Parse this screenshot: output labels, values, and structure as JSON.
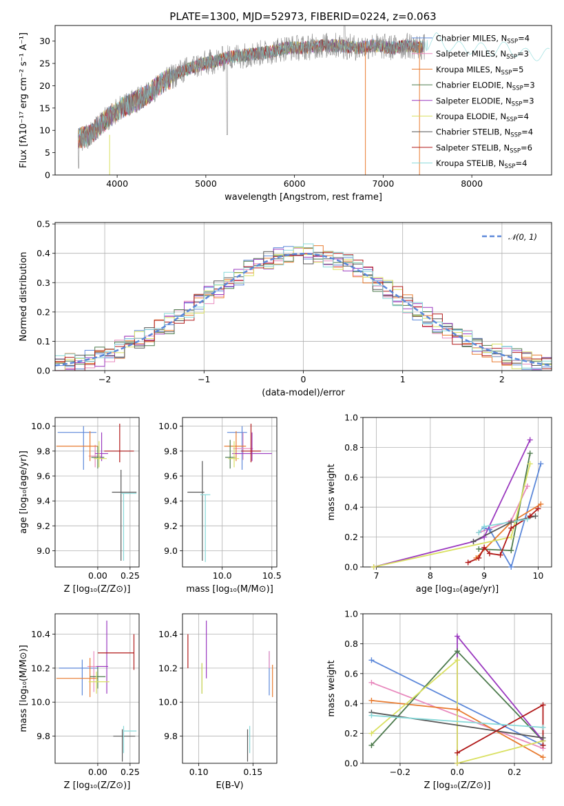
{
  "figure_title": "PLATE=1300, MJD=52973, FIBERID=0224, z=0.063",
  "series_colors": [
    "#5b87d9",
    "#e888bd",
    "#e87a2e",
    "#4c7a4c",
    "#9a38bf",
    "#d9e060",
    "#555555",
    "#b01818",
    "#86d8d8"
  ],
  "chart_data": [
    {
      "id": "spectrum",
      "type": "line",
      "xlabel": "wavelength [Angstrom, rest frame]",
      "ylabel": "Flux [fλ10⁻¹⁷ erg cm⁻² s⁻¹ A⁻¹]",
      "xlim": [
        3300,
        8900
      ],
      "ylim": [
        0,
        33.5
      ],
      "xticks": [
        4000,
        5000,
        6000,
        7000,
        8000
      ],
      "yticks": [
        0,
        5,
        10,
        15,
        20,
        25,
        30
      ],
      "legend_position": "right",
      "legend": [
        {
          "name": "Chabrier MILES, N",
          "sub": "SSP",
          "tail": "=4"
        },
        {
          "name": "Salpeter MILES, N",
          "sub": "SSP",
          "tail": "=3"
        },
        {
          "name": "Kroupa MILES, N",
          "sub": "SSP",
          "tail": "=5"
        },
        {
          "name": "Chabrier ELODIE, N",
          "sub": "SSP",
          "tail": "=3"
        },
        {
          "name": "Salpeter ELODIE, N",
          "sub": "SSP",
          "tail": "=3"
        },
        {
          "name": "Kroupa ELODIE, N",
          "sub": "SSP",
          "tail": "=4"
        },
        {
          "name": "Chabrier STELIB, N",
          "sub": "SSP",
          "tail": "=4"
        },
        {
          "name": "Salpeter STELIB, N",
          "sub": "SSP",
          "tail": "=6"
        },
        {
          "name": "Kroupa STELIB, N",
          "sub": "SSP",
          "tail": "=4"
        }
      ],
      "continuum": {
        "x": [
          3560,
          3700,
          3850,
          4000,
          4150,
          4300,
          4500,
          4700,
          4900,
          5100,
          5300,
          5500,
          5700,
          5900,
          6100,
          6300,
          6500,
          6700,
          6900,
          7100,
          7300,
          7450,
          7600,
          7800,
          8000,
          8200,
          8400,
          8600,
          8800
        ],
        "y": [
          8,
          9,
          12,
          14.5,
          16,
          17.5,
          20.5,
          23,
          24.5,
          25.5,
          26.5,
          27,
          27.5,
          28.5,
          28.5,
          29,
          29,
          28.5,
          29,
          28.5,
          29,
          28.5,
          30.5,
          28.5,
          28.5,
          28,
          28.5,
          27,
          27
        ]
      },
      "data_range": [
        3560,
        7470
      ],
      "model_range": [
        3560,
        8880
      ]
    },
    {
      "id": "residual-histogram",
      "type": "bar",
      "xlabel": "(data-model)/error",
      "ylabel": "Normed distribution",
      "xlim": [
        -2.5,
        2.5
      ],
      "ylim": [
        0,
        0.505
      ],
      "xticks": [
        -2,
        -1,
        0,
        1,
        2
      ],
      "yticks": [
        0.0,
        0.1,
        0.2,
        0.3,
        0.4,
        0.5
      ],
      "legend": [
        "𝒩(0, 1)"
      ],
      "legend_position": "top-right",
      "bin_width": 0.1,
      "grid": true
    },
    {
      "id": "age-vs-metallicity",
      "type": "scatter",
      "xlabel": "Z [log₁₀(Z/Z⊙)]",
      "ylabel": "age  [log₁₀(age/yr)]",
      "xlim": [
        -0.33,
        0.32
      ],
      "ylim": [
        8.87,
        10.07
      ],
      "xticks": [
        0.0,
        0.25
      ],
      "yticks": [
        9.0,
        9.2,
        9.4,
        9.6,
        9.8,
        10.0
      ],
      "points": [
        {
          "x": -0.11,
          "y": 9.95,
          "xerr": [
            0.2,
            0.1
          ],
          "yerr": [
            0.3,
            0.05
          ]
        },
        {
          "x": -0.02,
          "y": 9.76,
          "xerr": [
            0.05,
            0.05
          ],
          "yerr": [
            0.09,
            0.09
          ]
        },
        {
          "x": -0.06,
          "y": 9.84,
          "xerr": [
            0.26,
            0.06
          ],
          "yerr": [
            0.12,
            0.12
          ]
        },
        {
          "x": 0.0,
          "y": 9.75,
          "xerr": [
            0.05,
            0.05
          ],
          "yerr": [
            0.09,
            0.09
          ]
        },
        {
          "x": 0.03,
          "y": 9.78,
          "xerr": [
            0.05,
            0.05
          ],
          "yerr": [
            0.06,
            0.17
          ]
        },
        {
          "x": 0.01,
          "y": 9.74,
          "xerr": [
            0.04,
            0.06
          ],
          "yerr": [
            0.07,
            0.14
          ]
        },
        {
          "x": 0.18,
          "y": 9.47,
          "xerr": [
            0.07,
            0.12
          ],
          "yerr": [
            0.55,
            0.18
          ]
        },
        {
          "x": 0.17,
          "y": 9.8,
          "xerr": [
            0.12,
            0.11
          ],
          "yerr": [
            0.09,
            0.22
          ]
        },
        {
          "x": 0.2,
          "y": 9.46,
          "xerr": [
            0.02,
            0.1
          ],
          "yerr": [
            0.54,
            0.0
          ]
        }
      ]
    },
    {
      "id": "age-vs-mass",
      "type": "scatter",
      "xlabel": "mass [log₁₀(M/M⊙)]",
      "ylabel": "",
      "xlim": [
        9.6,
        10.55
      ],
      "ylim": [
        8.87,
        10.07
      ],
      "xticks": [
        10.0,
        10.5
      ],
      "yticks": [
        9.0,
        9.2,
        9.4,
        9.6,
        9.8,
        10.0
      ],
      "points": [
        {
          "x": 10.2,
          "y": 9.95,
          "xerr": [
            0.15,
            0.05
          ],
          "yerr": [
            0.3,
            0.05
          ]
        },
        {
          "x": 10.21,
          "y": 9.82,
          "xerr": [
            0.1,
            0.1
          ],
          "yerr": [
            0.09,
            0.13
          ]
        },
        {
          "x": 10.14,
          "y": 9.84,
          "xerr": [
            0.12,
            0.1
          ],
          "yerr": [
            0.12,
            0.12
          ]
        },
        {
          "x": 10.08,
          "y": 9.75,
          "xerr": [
            0.05,
            0.05
          ],
          "yerr": [
            0.09,
            0.14
          ]
        },
        {
          "x": 10.3,
          "y": 9.78,
          "xerr": [
            0.2,
            0.2
          ],
          "yerr": [
            0.06,
            0.17
          ]
        },
        {
          "x": 10.12,
          "y": 9.74,
          "xerr": [
            0.06,
            0.05
          ],
          "yerr": [
            0.07,
            0.14
          ]
        },
        {
          "x": 9.8,
          "y": 9.47,
          "xerr": [
            0.15,
            0.02
          ],
          "yerr": [
            0.55,
            0.25
          ]
        },
        {
          "x": 10.29,
          "y": 9.8,
          "xerr": [
            0.1,
            0.1
          ],
          "yerr": [
            0.09,
            0.22
          ]
        },
        {
          "x": 9.83,
          "y": 9.45,
          "xerr": [
            0.05,
            0.05
          ],
          "yerr": [
            0.54,
            0.0
          ]
        }
      ]
    },
    {
      "id": "mass-weight-vs-age",
      "type": "line",
      "xlabel": "age  [log₁₀(age/yr)]",
      "ylabel": "mass weight",
      "xlim": [
        6.75,
        10.25
      ],
      "ylim": [
        0.0,
        1.0
      ],
      "xticks": [
        7,
        8,
        9,
        10
      ],
      "yticks": [
        0.0,
        0.2,
        0.4,
        0.6,
        0.8,
        1.0
      ],
      "series": [
        {
          "x": [
            9.0,
            9.1,
            9.5,
            10.05
          ],
          "y": [
            0.26,
            0.25,
            0.0,
            0.69
          ]
        },
        {
          "x": [
            8.9,
            9.5,
            9.8
          ],
          "y": [
            0.23,
            0.31,
            0.54
          ]
        },
        {
          "x": [
            8.85,
            9.5,
            10.05
          ],
          "y": [
            0.06,
            0.3,
            0.42
          ]
        },
        {
          "x": [
            8.9,
            9.5,
            9.85
          ],
          "y": [
            0.12,
            0.11,
            0.76
          ]
        },
        {
          "x": [
            6.95,
            8.8,
            9.0,
            9.85
          ],
          "y": [
            0.0,
            0.17,
            0.2,
            0.85
          ]
        },
        {
          "x": [
            6.95,
            9.5,
            9.85
          ],
          "y": [
            0.0,
            0.2,
            0.69
          ]
        },
        {
          "x": [
            8.8,
            9.5,
            9.95
          ],
          "y": [
            0.17,
            0.3,
            0.34
          ]
        },
        {
          "x": [
            8.7,
            8.9,
            9.0,
            9.1,
            9.3,
            9.5,
            9.85,
            10.0
          ],
          "y": [
            0.03,
            0.06,
            0.13,
            0.09,
            0.08,
            0.26,
            0.34,
            0.39
          ]
        },
        {
          "x": [
            8.9,
            9.0,
            9.8
          ],
          "y": [
            0.23,
            0.27,
            0.32
          ]
        }
      ]
    },
    {
      "id": "mass-vs-metallicity",
      "type": "scatter",
      "xlabel": "Z [log₁₀(Z/Z⊙)]",
      "ylabel": "mass [log₁₀(M/M⊙)]",
      "xlim": [
        -0.33,
        0.32
      ],
      "ylim": [
        9.64,
        10.52
      ],
      "xticks": [
        0.0,
        0.25
      ],
      "yticks": [
        9.8,
        10.0,
        10.2,
        10.4
      ],
      "points": [
        {
          "x": -0.12,
          "y": 10.2,
          "xerr": [
            0.18,
            0.12
          ],
          "yerr": [
            0.16,
            0.05
          ]
        },
        {
          "x": -0.03,
          "y": 10.21,
          "xerr": [
            0.05,
            0.1
          ],
          "yerr": [
            0.15,
            0.09
          ]
        },
        {
          "x": -0.06,
          "y": 10.14,
          "xerr": [
            0.26,
            0.06
          ],
          "yerr": [
            0.11,
            0.12
          ]
        },
        {
          "x": 0.0,
          "y": 10.15,
          "xerr": [
            0.06,
            0.06
          ],
          "yerr": [
            0.07,
            0.06
          ]
        },
        {
          "x": 0.07,
          "y": 10.21,
          "xerr": [
            0.08,
            0.01
          ],
          "yerr": [
            0.16,
            0.27
          ]
        },
        {
          "x": -0.01,
          "y": 10.12,
          "xerr": [
            0.06,
            0.1
          ],
          "yerr": [
            0.07,
            0.06
          ]
        },
        {
          "x": 0.19,
          "y": 9.8,
          "xerr": [
            0.07,
            0.1
          ],
          "yerr": [
            0.15,
            0.04
          ]
        },
        {
          "x": 0.28,
          "y": 10.29,
          "xerr": [
            0.28,
            0.0
          ],
          "yerr": [
            0.1,
            0.11
          ]
        },
        {
          "x": 0.2,
          "y": 9.83,
          "xerr": [
            0.0,
            0.1
          ],
          "yerr": [
            0.13,
            0.03
          ]
        }
      ]
    },
    {
      "id": "mass-vs-extinction",
      "type": "scatter",
      "xlabel": "E(B-V)",
      "ylabel": "",
      "xlim": [
        0.085,
        0.172
      ],
      "ylim": [
        9.64,
        10.52
      ],
      "xticks": [
        0.1,
        0.15
      ],
      "yticks": [
        9.8,
        10.0,
        10.2,
        10.4
      ],
      "points": [
        {
          "x": 0.165,
          "y": 10.2,
          "xerr": [
            0.0,
            0.0
          ],
          "yerr": [
            0.16,
            0.1
          ]
        },
        {
          "x": 0.165,
          "y": 10.2,
          "xerr": [
            0.0,
            0.0
          ],
          "yerr": [
            0.0,
            0.1
          ]
        },
        {
          "x": 0.168,
          "y": 10.14,
          "xerr": [
            0.0,
            0.0
          ],
          "yerr": [
            0.11,
            0.08
          ]
        },
        {
          "x": 0.103,
          "y": 10.14,
          "xerr": [
            0.0,
            0.0
          ],
          "yerr": [
            0.09,
            0.09
          ]
        },
        {
          "x": 0.107,
          "y": 10.25,
          "xerr": [
            0.0,
            0.0
          ],
          "yerr": [
            0.11,
            0.23
          ]
        },
        {
          "x": 0.103,
          "y": 10.14,
          "xerr": [
            0.0,
            0.0
          ],
          "yerr": [
            0.09,
            0.09
          ]
        },
        {
          "x": 0.145,
          "y": 9.75,
          "xerr": [
            0.0,
            0.0
          ],
          "yerr": [
            0.1,
            0.09
          ]
        },
        {
          "x": 0.09,
          "y": 10.3,
          "xerr": [
            0.0,
            0.0
          ],
          "yerr": [
            0.1,
            0.1
          ]
        },
        {
          "x": 0.147,
          "y": 9.78,
          "xerr": [
            0.0,
            0.0
          ],
          "yerr": [
            0.08,
            0.08
          ]
        }
      ]
    },
    {
      "id": "mass-weight-vs-metallicity",
      "type": "line",
      "xlabel": "Z [log₁₀(Z/Z⊙)]",
      "ylabel": "mass weight",
      "xlim": [
        -0.33,
        0.33
      ],
      "ylim": [
        0.0,
        1.0
      ],
      "xticks": [
        -0.2,
        0.0,
        0.2
      ],
      "yticks": [
        0.0,
        0.2,
        0.4,
        0.6,
        0.8,
        1.0
      ],
      "series": [
        {
          "x": [
            -0.3,
            0.3
          ],
          "y": [
            0.69,
            0.12
          ]
        },
        {
          "x": [
            -0.3,
            0.3
          ],
          "y": [
            0.54,
            0.1
          ]
        },
        {
          "x": [
            -0.3,
            0.0,
            0.3
          ],
          "y": [
            0.42,
            0.36,
            0.04
          ]
        },
        {
          "x": [
            -0.3,
            0.0,
            0.3
          ],
          "y": [
            0.12,
            0.75,
            0.15
          ]
        },
        {
          "x": [
            0.0,
            0.0,
            0.3
          ],
          "y": [
            0.0,
            0.85,
            0.15
          ]
        },
        {
          "x": [
            -0.3,
            0.0,
            0.0,
            0.3
          ],
          "y": [
            0.2,
            0.69,
            0.0,
            0.15
          ]
        },
        {
          "x": [
            -0.3,
            0.3
          ],
          "y": [
            0.34,
            0.17
          ]
        },
        {
          "x": [
            0.0,
            0.3,
            0.3
          ],
          "y": [
            0.07,
            0.39,
            0.12
          ]
        },
        {
          "x": [
            -0.3,
            0.3
          ],
          "y": [
            0.32,
            0.24
          ]
        }
      ]
    }
  ]
}
